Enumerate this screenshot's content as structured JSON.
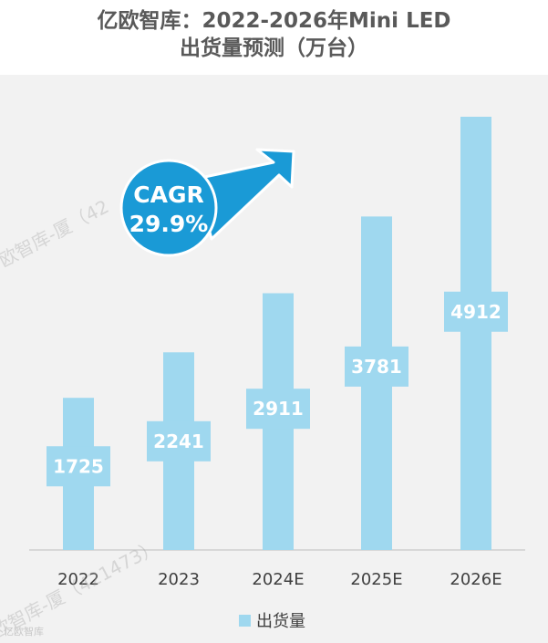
{
  "title": {
    "line1": "亿欧智库：2022-2026年Mini LED",
    "line2": "出货量预测（万台）"
  },
  "callout": {
    "label": "CAGR",
    "value": "29.9%"
  },
  "watermarks": [
    "欧智库-厦（42",
    "欧智库-厦（421473）"
  ],
  "credit": "亿欧智库",
  "colors": {
    "bar": "#9fd8ef",
    "bar_label_bg": "#ffffff",
    "bar_label_text": "#ffffff",
    "callout": "#1a9ad6",
    "axis_text": "#404040",
    "title": "#595959",
    "plot_background": "#f2f2f2"
  },
  "chart_data": {
    "type": "bar",
    "categories": [
      "2022",
      "2023",
      "2024E",
      "2025E",
      "2026E"
    ],
    "series": [
      {
        "name": "出货量",
        "values": [
          1725,
          2241,
          2911,
          3781,
          4912
        ]
      }
    ],
    "ylim": [
      0,
      5000
    ],
    "grid": false,
    "legend": "bottom-center",
    "annotation": "CAGR 29.9%"
  }
}
